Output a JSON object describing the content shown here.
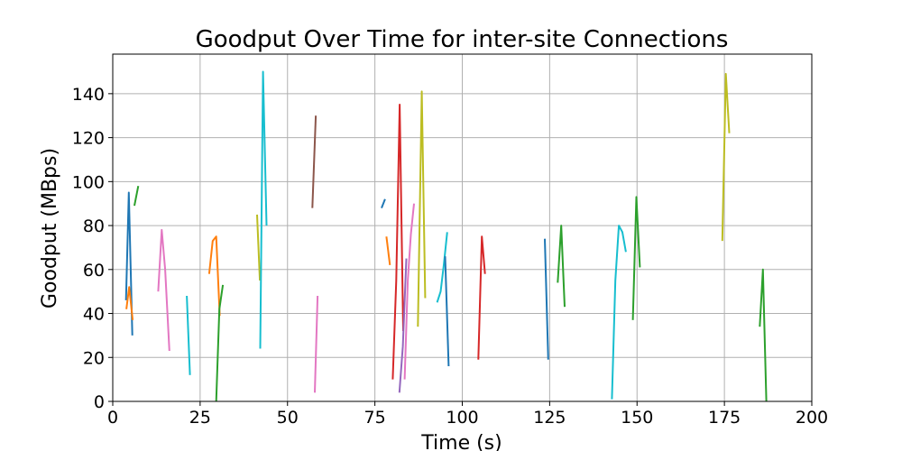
{
  "chart_data": {
    "type": "line",
    "title": "Goodput Over Time for inter-site Connections",
    "xlabel": "Time (s)",
    "ylabel": "Goodput (MBps)",
    "xlim": [
      0,
      200
    ],
    "ylim": [
      0,
      158
    ],
    "xticks": [
      0,
      25,
      50,
      75,
      100,
      125,
      150,
      175,
      200
    ],
    "yticks": [
      0,
      20,
      40,
      60,
      80,
      100,
      120,
      140
    ],
    "grid": true,
    "legend": "none",
    "series": [
      {
        "color": "#1f77b4",
        "x": [
          3.8,
          4.6,
          5.6
        ],
        "y": [
          46,
          95,
          30
        ]
      },
      {
        "color": "#ff7f0e",
        "x": [
          3.9,
          4.7,
          5.7
        ],
        "y": [
          42,
          52,
          37
        ]
      },
      {
        "color": "#2ca02c",
        "x": [
          6.2,
          7.3
        ],
        "y": [
          89,
          98
        ]
      },
      {
        "color": "#e377c2",
        "x": [
          13.0,
          14.0,
          15.0,
          16.2
        ],
        "y": [
          50,
          78,
          60,
          23
        ]
      },
      {
        "color": "#17becf",
        "x": [
          21.2,
          22.1
        ],
        "y": [
          48,
          12
        ]
      },
      {
        "color": "#ff7f0e",
        "x": [
          27.6,
          28.6,
          29.6,
          30.6
        ],
        "y": [
          58,
          73,
          75,
          39
        ]
      },
      {
        "color": "#2ca02c",
        "x": [
          29.6,
          30.5,
          31.5
        ],
        "y": [
          0,
          42,
          53
        ]
      },
      {
        "color": "#bcbd22",
        "x": [
          41.3,
          42.1
        ],
        "y": [
          85,
          55
        ]
      },
      {
        "color": "#17becf",
        "x": [
          42.2,
          43.0,
          44.0
        ],
        "y": [
          24,
          150,
          80
        ]
      },
      {
        "color": "#8c564b",
        "x": [
          57.1,
          58.1
        ],
        "y": [
          88,
          130
        ]
      },
      {
        "color": "#e377c2",
        "x": [
          57.8,
          58.6
        ],
        "y": [
          4,
          48
        ]
      },
      {
        "color": "#1f77b4",
        "x": [
          76.9,
          77.9
        ],
        "y": [
          88,
          92
        ]
      },
      {
        "color": "#ff7f0e",
        "x": [
          78.3,
          79.3
        ],
        "y": [
          75,
          62
        ]
      },
      {
        "color": "#d62728",
        "x": [
          80.1,
          81.1,
          82.1,
          83.1
        ],
        "y": [
          10,
          55,
          135,
          32
        ]
      },
      {
        "color": "#9467bd",
        "x": [
          82.0,
          83.0,
          84.0
        ],
        "y": [
          4,
          25,
          65
        ]
      },
      {
        "color": "#e377c2",
        "x": [
          83.5,
          84.4,
          85.3,
          86.2
        ],
        "y": [
          10,
          55,
          76,
          90
        ]
      },
      {
        "color": "#bcbd22",
        "x": [
          87.3,
          88.4,
          89.4
        ],
        "y": [
          34,
          141,
          47
        ]
      },
      {
        "color": "#17becf",
        "x": [
          92.8,
          93.8,
          94.7,
          95.7
        ],
        "y": [
          45,
          50,
          62,
          77
        ]
      },
      {
        "color": "#1f77b4",
        "x": [
          95.1,
          96.1
        ],
        "y": [
          66,
          16
        ]
      },
      {
        "color": "#d62728",
        "x": [
          104.6,
          105.6,
          106.5
        ],
        "y": [
          19,
          75,
          58
        ]
      },
      {
        "color": "#1f77b4",
        "x": [
          123.6,
          124.6
        ],
        "y": [
          74,
          19
        ]
      },
      {
        "color": "#2ca02c",
        "x": [
          127.3,
          128.3,
          129.3
        ],
        "y": [
          54,
          80,
          43
        ]
      },
      {
        "color": "#17becf",
        "x": [
          142.8,
          143.8,
          144.8,
          145.8,
          146.8
        ],
        "y": [
          1,
          55,
          80,
          77,
          68
        ]
      },
      {
        "color": "#2ca02c",
        "x": [
          148.8,
          149.8,
          150.8
        ],
        "y": [
          37,
          93,
          61
        ]
      },
      {
        "color": "#bcbd22",
        "x": [
          174.4,
          175.4,
          176.4
        ],
        "y": [
          73,
          149,
          122
        ]
      },
      {
        "color": "#2ca02c",
        "x": [
          185.1,
          186.0,
          187.0
        ],
        "y": [
          34,
          60,
          0
        ]
      }
    ]
  }
}
